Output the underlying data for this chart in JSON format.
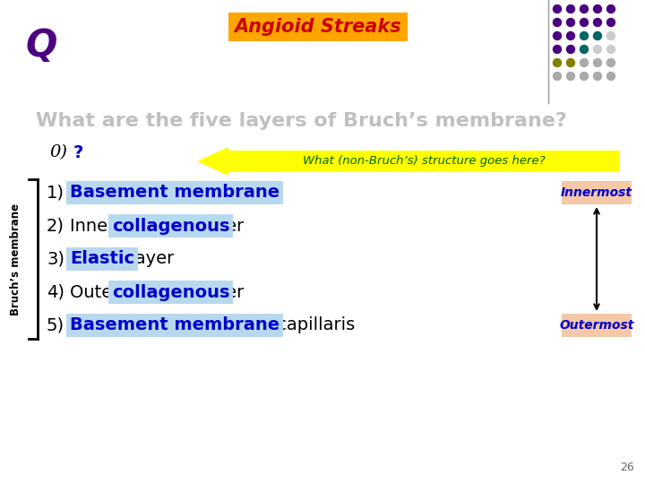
{
  "bg_color": "#ffffff",
  "q_text": "Q",
  "q_color": "#4b0082",
  "title_box_text": "Angioid Streaks",
  "title_box_bg": "#ffa500",
  "title_box_text_color": "#cc0000",
  "question_text": "What are the five layers of Bruch’s membrane?",
  "question_color": "#c0c0c0",
  "zero_text_0": "0)",
  "zero_text_q": " ?",
  "zero_q_color": "#0000cc",
  "arrow_text": "What (non-Bruch’s) structure goes here?",
  "arrow_bg": "#ffff00",
  "arrow_text_color": "#006600",
  "highlight_bg": "#b8d8f0",
  "highlight_text_color": "#0000cc",
  "normal_text_color": "#000000",
  "bracket_color": "#000000",
  "side_label": "Bruch’s membrane",
  "innermost_text": "Innermost",
  "outermost_text": "Outermost",
  "label_box_bg": "#f5c8a8",
  "label_box_text_color": "#0000cc",
  "page_num": "26",
  "dot_colors": [
    [
      "#4b0082",
      "#4b0082",
      "#4b0082",
      "#4b0082",
      "#4b0082"
    ],
    [
      "#4b0082",
      "#4b0082",
      "#4b0082",
      "#4b0082",
      "#4b0082"
    ],
    [
      "#4b0082",
      "#4b0082",
      "#006666",
      "#006666",
      "#cccccc"
    ],
    [
      "#4b0082",
      "#4b0082",
      "#006666",
      "#cccccc",
      "#cccccc"
    ],
    [
      "#808000",
      "#808000",
      "#aaaaaa",
      "#aaaaaa",
      "#aaaaaa"
    ],
    [
      "#aaaaaa",
      "#aaaaaa",
      "#aaaaaa",
      "#aaaaaa",
      "#aaaaaa"
    ]
  ]
}
